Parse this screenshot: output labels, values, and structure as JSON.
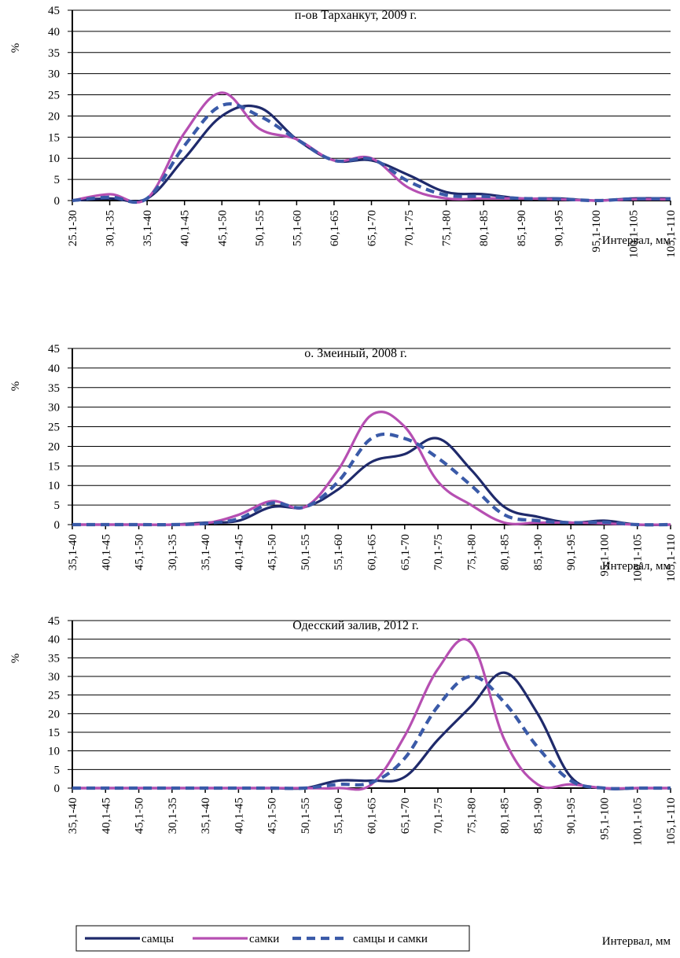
{
  "colors": {
    "males": "#1f2a6b",
    "females": "#b64fb2",
    "both": "#3a5aa8",
    "grid": "#000000"
  },
  "legend": {
    "males": "самцы",
    "females": "самки",
    "both": "самцы и самки"
  },
  "chart_data": [
    {
      "type": "line",
      "title": "п-ов Тарханкут, 2009 г.",
      "ylabel": "%",
      "xlabel": "Интервал, мм",
      "ylim": [
        0,
        45
      ],
      "yticks": [
        0,
        5,
        10,
        15,
        20,
        25,
        30,
        35,
        40,
        45
      ],
      "categories": [
        "25.1-30",
        "30,1-35",
        "35,1-40",
        "40,1-45",
        "45,1-50",
        "50,1-55",
        "55,1-60",
        "60,1-65",
        "65,1-70",
        "70,1-75",
        "75,1-80",
        "80,1-85",
        "85,1-90",
        "90,1-95",
        "95,1-100",
        "100,1-105",
        "105,1-110"
      ],
      "series": [
        {
          "name": "самцы",
          "key": "males",
          "values": [
            0,
            0.5,
            0.5,
            10,
            20,
            22,
            14.5,
            9.5,
            9.5,
            6,
            2,
            1.5,
            0.5,
            0.5,
            0,
            0.5,
            0.5
          ]
        },
        {
          "name": "самки",
          "key": "females",
          "values": [
            0,
            1.5,
            0.5,
            16,
            25.5,
            17,
            14.5,
            9.5,
            10,
            3,
            0.5,
            0.5,
            0.5,
            0.3,
            0,
            0.3,
            0.3
          ]
        },
        {
          "name": "самцы и самки",
          "key": "both",
          "values": [
            0,
            0.8,
            0.5,
            13,
            22.5,
            20,
            14.5,
            9.5,
            9.8,
            4.5,
            1.3,
            1,
            0.5,
            0.4,
            0,
            0.4,
            0.4
          ]
        }
      ]
    },
    {
      "type": "line",
      "title": "о. Змеиный, 2008 г.",
      "ylabel": "%",
      "xlabel": "Интервал, мм",
      "ylim": [
        0,
        45
      ],
      "yticks": [
        0,
        5,
        10,
        15,
        20,
        25,
        30,
        35,
        40,
        45
      ],
      "categories": [
        "35,1-40",
        "40,1-45",
        "45,1-50",
        "30,1-35",
        "35,1-40",
        "40,1-45",
        "45,1-50",
        "50,1-55",
        "55,1-60",
        "60,1-65",
        "65,1-70",
        "70,1-75",
        "75,1-80",
        "80,1-85",
        "85,1-90",
        "90,1-95",
        "95,1-100",
        "100,1-105",
        "105,1-110"
      ],
      "series": [
        {
          "name": "самцы",
          "key": "males",
          "values": [
            0,
            0,
            0,
            0,
            0.5,
            1,
            4.5,
            4.5,
            9,
            16,
            18,
            22,
            14,
            4.5,
            2,
            0.5,
            1,
            0,
            0
          ]
        },
        {
          "name": "самки",
          "key": "females",
          "values": [
            0,
            0,
            0,
            0,
            0.3,
            2.5,
            6,
            4.5,
            14,
            28,
            25,
            11,
            5,
            0.5,
            0.5,
            0.5,
            0.3,
            0,
            0
          ]
        },
        {
          "name": "самцы и самки",
          "key": "both",
          "values": [
            0,
            0,
            0,
            0,
            0.3,
            1.5,
            5.5,
            4.5,
            11,
            22,
            22,
            17,
            10,
            2.5,
            1,
            0.5,
            0.6,
            0,
            0
          ]
        }
      ]
    },
    {
      "type": "line",
      "title": "Одесский залив, 2012 г.",
      "ylabel": "%",
      "xlabel": "Интервал, мм",
      "ylim": [
        0,
        45
      ],
      "yticks": [
        0,
        5,
        10,
        15,
        20,
        25,
        30,
        35,
        40,
        45
      ],
      "categories": [
        "35,1-40",
        "40,1-45",
        "45,1-50",
        "30,1-35",
        "35,1-40",
        "40,1-45",
        "45,1-50",
        "50,1-55",
        "55,1-60",
        "60,1-65",
        "65,1-70",
        "70,1-75",
        "75,1-80",
        "80,1-85",
        "85,1-90",
        "90,1-95",
        "95,1-100",
        "100,1-105",
        "105,1-110"
      ],
      "series": [
        {
          "name": "самцы",
          "key": "males",
          "values": [
            0,
            0,
            0,
            0,
            0,
            0,
            0,
            0,
            2,
            2,
            3,
            13,
            22,
            31,
            20,
            3,
            0,
            0,
            0
          ]
        },
        {
          "name": "самки",
          "key": "females",
          "values": [
            0,
            0,
            0,
            0,
            0,
            0,
            0,
            0,
            0,
            1,
            14,
            32,
            39,
            13,
            1,
            1,
            0,
            0,
            0
          ]
        },
        {
          "name": "самцы и самки",
          "key": "both",
          "values": [
            0,
            0,
            0,
            0,
            0,
            0,
            0,
            0,
            1,
            1.5,
            8,
            22,
            30,
            23,
            11,
            2,
            0,
            0,
            0
          ]
        }
      ]
    }
  ]
}
